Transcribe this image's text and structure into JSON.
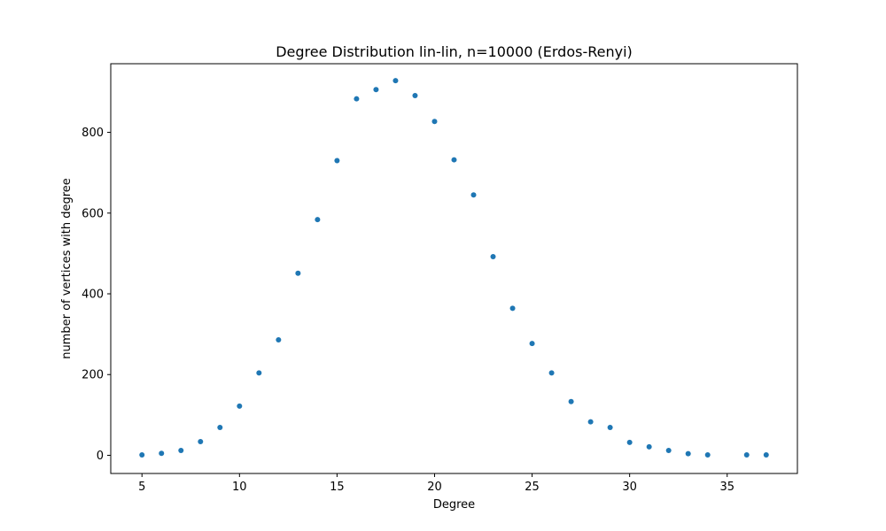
{
  "chart_data": {
    "type": "scatter",
    "title": "Degree Distribution lin-lin, n=10000 (Erdos-Renyi)",
    "xlabel": "Degree",
    "ylabel": "number of vertices with degree",
    "xlim": [
      3.4,
      38.6
    ],
    "ylim": [
      -45,
      970
    ],
    "xticks": [
      5,
      10,
      15,
      20,
      25,
      30,
      35
    ],
    "yticks": [
      0,
      200,
      400,
      600,
      800
    ],
    "grid": false,
    "legend": false,
    "series": [
      {
        "color": "#1f77b4",
        "points": [
          {
            "x": 5,
            "y": 1
          },
          {
            "x": 6,
            "y": 5
          },
          {
            "x": 7,
            "y": 12
          },
          {
            "x": 8,
            "y": 34
          },
          {
            "x": 9,
            "y": 69
          },
          {
            "x": 10,
            "y": 122
          },
          {
            "x": 11,
            "y": 204
          },
          {
            "x": 12,
            "y": 286
          },
          {
            "x": 13,
            "y": 451
          },
          {
            "x": 14,
            "y": 584
          },
          {
            "x": 15,
            "y": 730
          },
          {
            "x": 16,
            "y": 883
          },
          {
            "x": 17,
            "y": 906
          },
          {
            "x": 18,
            "y": 928
          },
          {
            "x": 19,
            "y": 891
          },
          {
            "x": 20,
            "y": 827
          },
          {
            "x": 21,
            "y": 732
          },
          {
            "x": 22,
            "y": 645
          },
          {
            "x": 23,
            "y": 492
          },
          {
            "x": 24,
            "y": 364
          },
          {
            "x": 25,
            "y": 277
          },
          {
            "x": 26,
            "y": 204
          },
          {
            "x": 27,
            "y": 133
          },
          {
            "x": 28,
            "y": 83
          },
          {
            "x": 29,
            "y": 69
          },
          {
            "x": 30,
            "y": 32
          },
          {
            "x": 31,
            "y": 21
          },
          {
            "x": 32,
            "y": 12
          },
          {
            "x": 33,
            "y": 4
          },
          {
            "x": 34,
            "y": 1
          },
          {
            "x": 36,
            "y": 1
          },
          {
            "x": 37,
            "y": 1
          }
        ]
      }
    ]
  }
}
